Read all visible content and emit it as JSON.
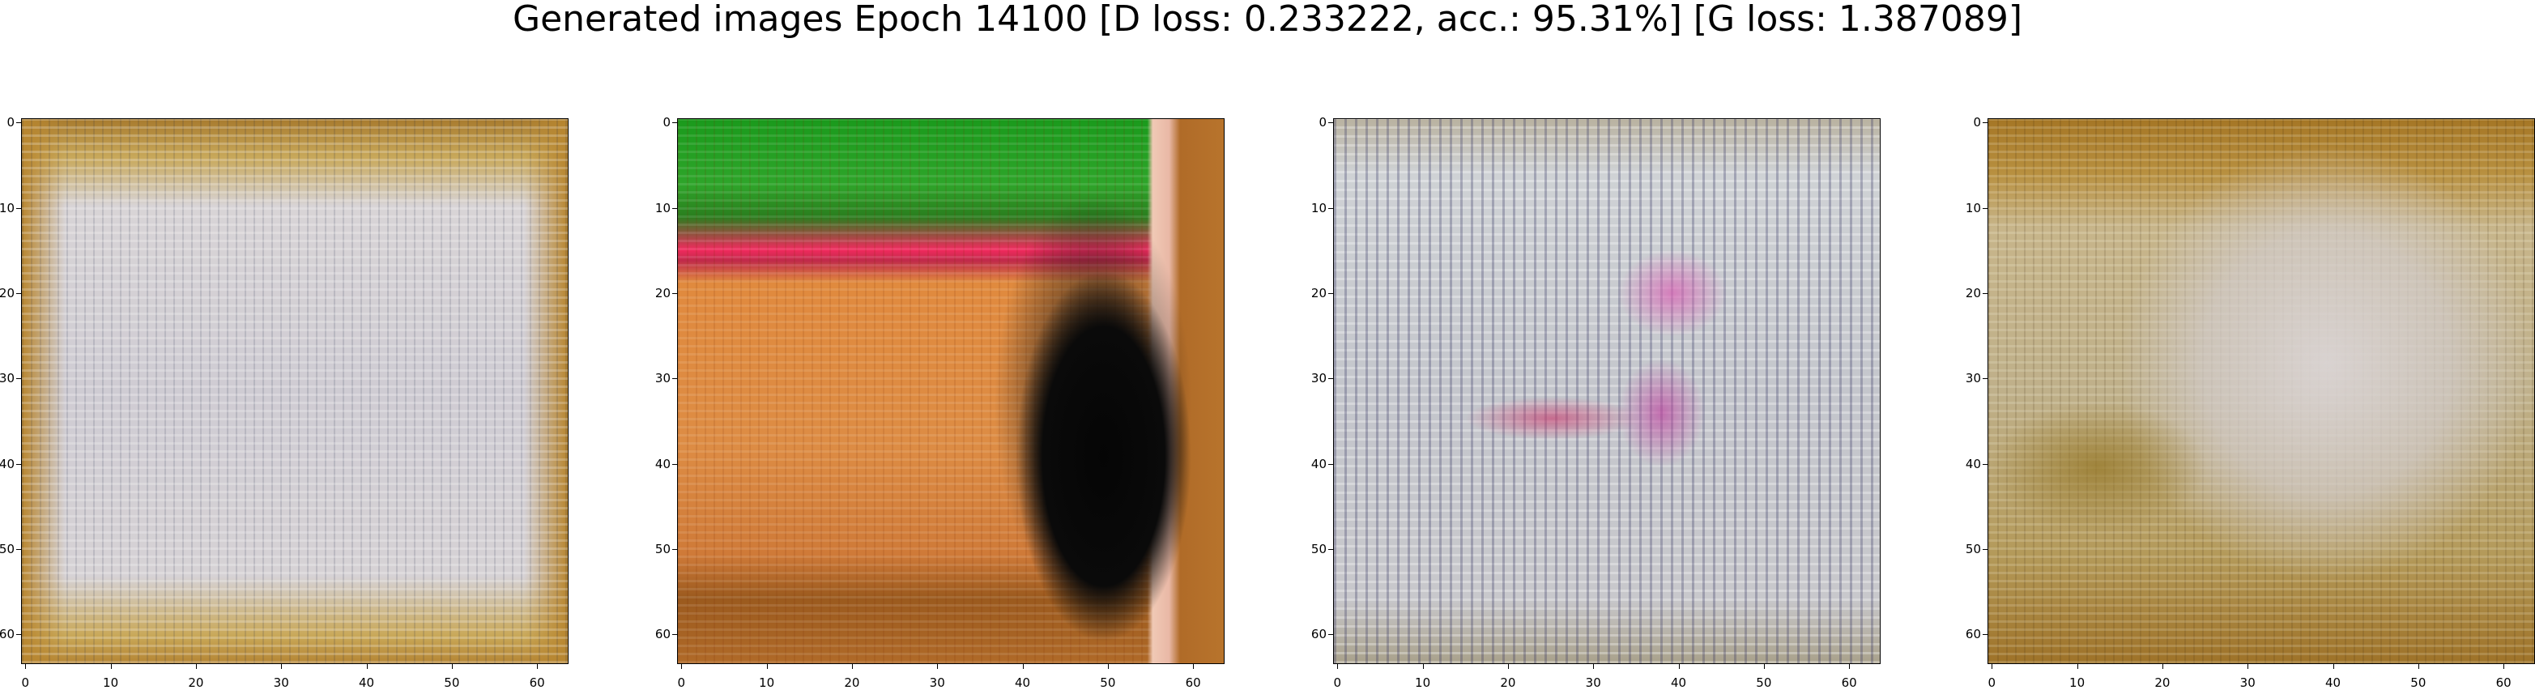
{
  "figure": {
    "title": "Generated images Epoch 14100 [D loss: 0.233222, acc.: 95.31%] [G loss: 1.387089]"
  },
  "axes": {
    "x_ticks": [
      "0",
      "10",
      "20",
      "30",
      "40",
      "50",
      "60"
    ],
    "y_ticks": [
      "0",
      "10",
      "20",
      "30",
      "40",
      "50",
      "60"
    ]
  },
  "panels": [
    {
      "id": "sample-1",
      "palette": [
        "#b98a3a",
        "#d9d6d9",
        "#c9c6d0"
      ]
    },
    {
      "id": "sample-2",
      "palette": [
        "#1f9e1f",
        "#d9893b",
        "#0b0b0b"
      ]
    },
    {
      "id": "sample-3",
      "palette": [
        "#c7cac9",
        "#6a6f86",
        "#d76bb5"
      ]
    },
    {
      "id": "sample-4",
      "palette": [
        "#b38b2b",
        "#d7d1cf",
        "#8a6a1a"
      ]
    }
  ]
}
